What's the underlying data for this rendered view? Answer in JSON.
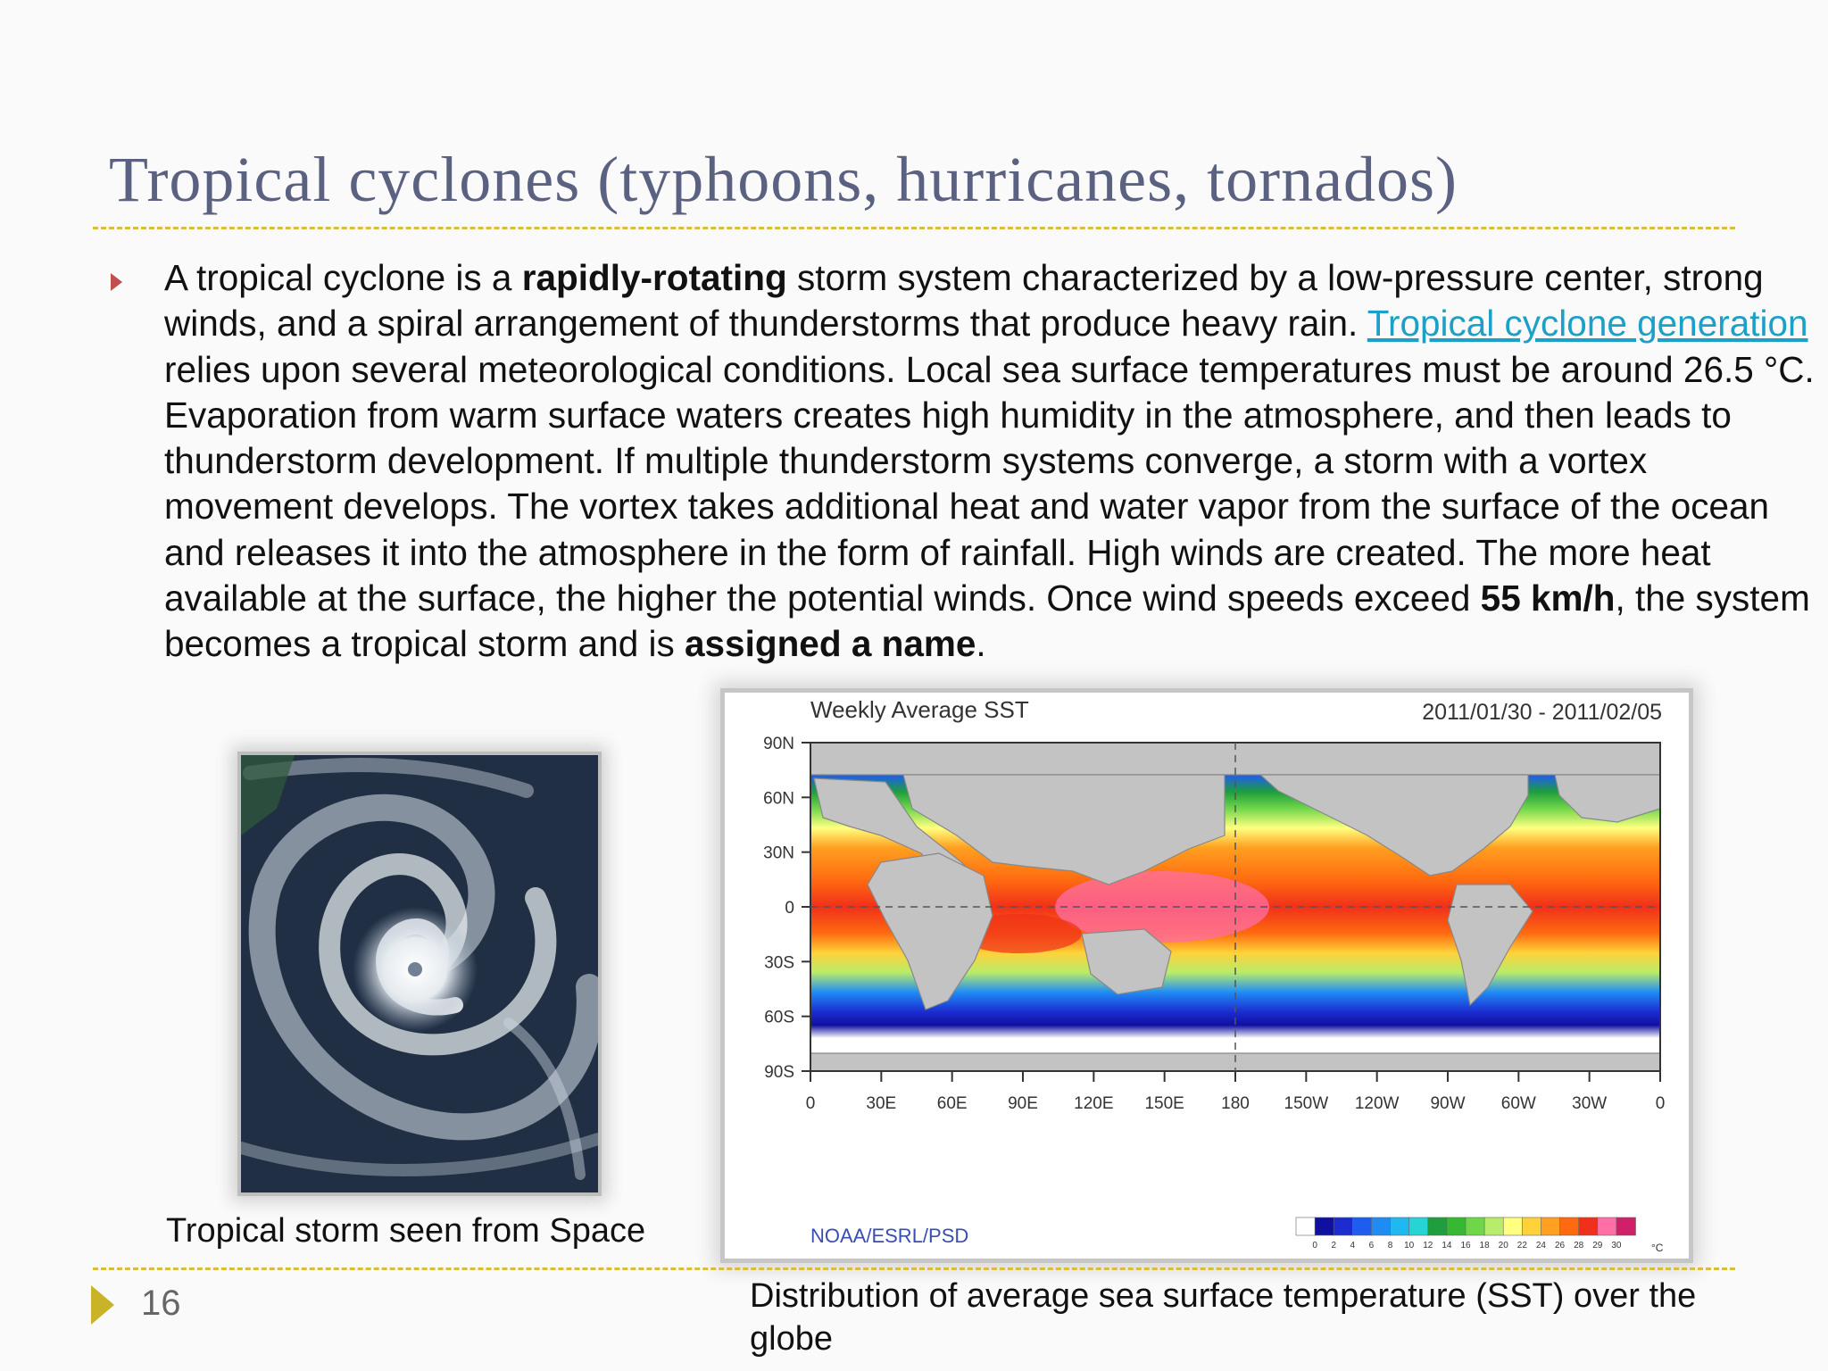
{
  "slide": {
    "title": "Tropical cyclones (typhoons, hurricanes, tornados)",
    "page_number": "16"
  },
  "body": {
    "t1": "A tropical cyclone is a ",
    "b1": "rapidly-rotating",
    "t2": " storm system characterized by a low-pressure center, strong winds, and a spiral arrangement of thunderstorms that produce heavy rain. ",
    "link": "Tropical cyclone generation",
    "t3": " relies upon several meteorological conditions. Local sea surface temperatures must be around 26.5 °C. Evaporation from warm surface waters creates high humidity in the atmosphere, and then leads to thunderstorm development. If multiple thunderstorm systems converge, a storm with a vortex movement develops. The vortex takes additional heat and water vapor from the surface of the ocean and releases it into the atmosphere in the form of rainfall. High winds are created. The more heat available at the surface, the higher the potential winds. Once wind speeds exceed ",
    "b2": "55 km/h",
    "t4": ", the system becomes a tropical storm and is ",
    "b3": "assigned a name",
    "t5": "."
  },
  "satellite_image": {
    "caption": "Tropical storm seen from Space"
  },
  "sst_map": {
    "caption": "Distribution of average sea surface temperature (SST) over the globe",
    "title": "Weekly Average SST",
    "date_range": "2011/01/30 - 2011/02/05",
    "credit": "NOAA/ESRL/PSD",
    "lat_labels": [
      "90N",
      "60N",
      "30N",
      "0",
      "30S",
      "60S",
      "90S"
    ],
    "lon_labels": [
      "0",
      "30E",
      "60E",
      "90E",
      "120E",
      "150E",
      "180",
      "150W",
      "120W",
      "90W",
      "60W",
      "30W",
      "0"
    ],
    "colorbar_ticks": [
      "0",
      "2",
      "4",
      "6",
      "8",
      "10",
      "12",
      "14",
      "16",
      "18",
      "20",
      "22",
      "24",
      "26",
      "28",
      "29",
      "30"
    ],
    "colorbar_unit": "°C",
    "colorbar_colors": [
      "#ffffff",
      "#1010a0",
      "#1c2cd0",
      "#1f5df0",
      "#1f8cf5",
      "#20b8f0",
      "#26d4d4",
      "#1e9e3c",
      "#36b832",
      "#6fd64a",
      "#b8ec6a",
      "#ffff80",
      "#ffd23a",
      "#ffa020",
      "#ff6a10",
      "#f0301a",
      "#ff6fa6",
      "#d0206a"
    ]
  }
}
